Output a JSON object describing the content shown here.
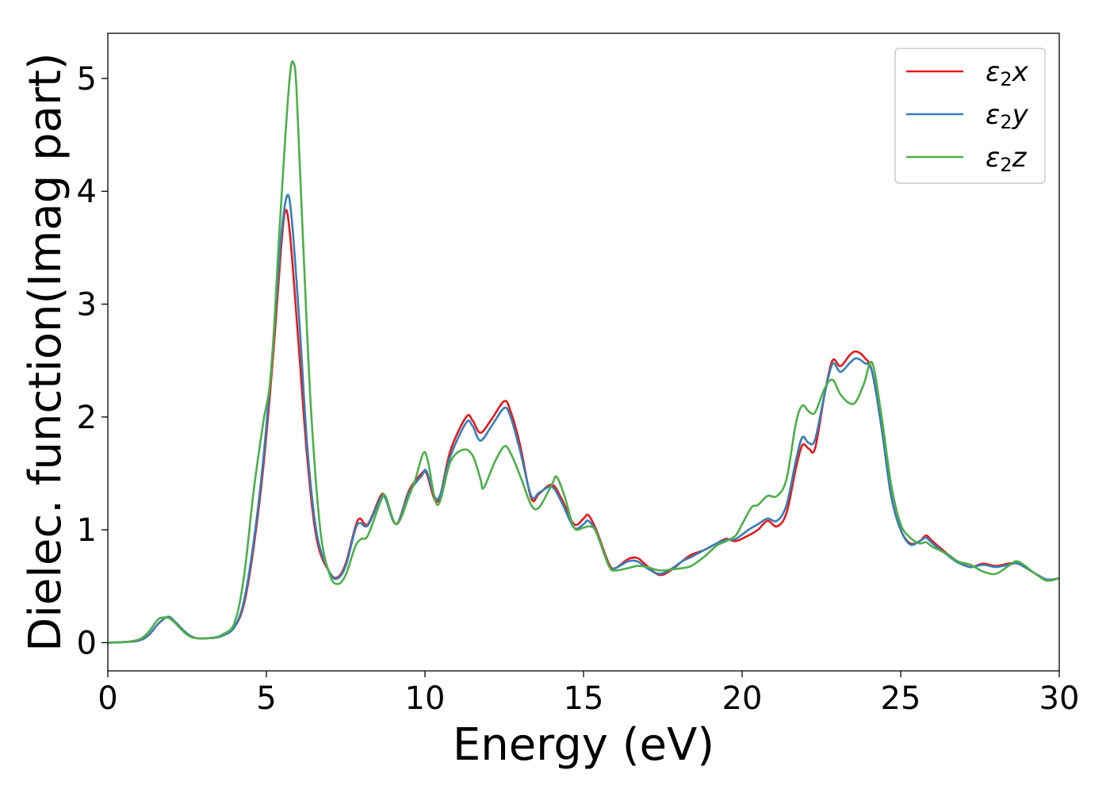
{
  "chart_data": {
    "type": "line",
    "title": "",
    "xlabel": "Energy (eV)",
    "ylabel": "Dielec. function(Imag part)",
    "xlim": [
      0,
      30
    ],
    "ylim": [
      -0.25,
      5.4
    ],
    "xticks": [
      0,
      5,
      10,
      15,
      20,
      25,
      30
    ],
    "yticks": [
      0,
      1,
      2,
      3,
      4,
      5
    ],
    "grid": false,
    "legend_position": "top-right",
    "series": [
      {
        "name": "ε2x",
        "legend_base": "ε",
        "legend_sub": "2",
        "legend_var": "x",
        "color": "#e41a1c",
        "points": [
          [
            0,
            0.0
          ],
          [
            0.5,
            0.005
          ],
          [
            1.0,
            0.02
          ],
          [
            1.3,
            0.07
          ],
          [
            1.6,
            0.17
          ],
          [
            1.9,
            0.23
          ],
          [
            2.1,
            0.19
          ],
          [
            2.5,
            0.08
          ],
          [
            2.8,
            0.04
          ],
          [
            3.2,
            0.04
          ],
          [
            3.6,
            0.06
          ],
          [
            4.0,
            0.14
          ],
          [
            4.3,
            0.35
          ],
          [
            4.6,
            0.85
          ],
          [
            4.9,
            1.55
          ],
          [
            5.2,
            2.5
          ],
          [
            5.45,
            3.45
          ],
          [
            5.6,
            3.83
          ],
          [
            5.75,
            3.6
          ],
          [
            6.0,
            2.7
          ],
          [
            6.3,
            1.6
          ],
          [
            6.6,
            0.9
          ],
          [
            7.0,
            0.62
          ],
          [
            7.25,
            0.58
          ],
          [
            7.5,
            0.7
          ],
          [
            7.8,
            1.02
          ],
          [
            7.95,
            1.1
          ],
          [
            8.2,
            1.05
          ],
          [
            8.6,
            1.3
          ],
          [
            8.75,
            1.28
          ],
          [
            9.1,
            1.05
          ],
          [
            9.5,
            1.35
          ],
          [
            9.9,
            1.5
          ],
          [
            10.05,
            1.5
          ],
          [
            10.4,
            1.25
          ],
          [
            10.8,
            1.7
          ],
          [
            11.3,
            2.0
          ],
          [
            11.5,
            1.97
          ],
          [
            11.75,
            1.86
          ],
          [
            12.1,
            1.98
          ],
          [
            12.5,
            2.14
          ],
          [
            12.7,
            2.05
          ],
          [
            13.0,
            1.75
          ],
          [
            13.35,
            1.28
          ],
          [
            13.6,
            1.32
          ],
          [
            14.0,
            1.4
          ],
          [
            14.3,
            1.28
          ],
          [
            14.7,
            1.05
          ],
          [
            15.0,
            1.1
          ],
          [
            15.15,
            1.13
          ],
          [
            15.4,
            1.0
          ],
          [
            15.8,
            0.7
          ],
          [
            16.0,
            0.66
          ],
          [
            16.4,
            0.74
          ],
          [
            16.7,
            0.75
          ],
          [
            17.0,
            0.68
          ],
          [
            17.4,
            0.6
          ],
          [
            17.8,
            0.65
          ],
          [
            18.1,
            0.72
          ],
          [
            18.4,
            0.78
          ],
          [
            18.8,
            0.82
          ],
          [
            19.2,
            0.88
          ],
          [
            19.5,
            0.92
          ],
          [
            19.8,
            0.9
          ],
          [
            20.2,
            0.95
          ],
          [
            20.5,
            1.0
          ],
          [
            20.8,
            1.08
          ],
          [
            21.1,
            1.03
          ],
          [
            21.4,
            1.15
          ],
          [
            21.7,
            1.55
          ],
          [
            21.9,
            1.75
          ],
          [
            22.1,
            1.72
          ],
          [
            22.3,
            1.72
          ],
          [
            22.6,
            2.2
          ],
          [
            22.85,
            2.5
          ],
          [
            23.1,
            2.45
          ],
          [
            23.4,
            2.55
          ],
          [
            23.6,
            2.58
          ],
          [
            23.85,
            2.53
          ],
          [
            24.1,
            2.4
          ],
          [
            24.4,
            1.9
          ],
          [
            24.7,
            1.3
          ],
          [
            25.0,
            1.0
          ],
          [
            25.3,
            0.88
          ],
          [
            25.6,
            0.9
          ],
          [
            25.8,
            0.95
          ],
          [
            26.0,
            0.9
          ],
          [
            26.5,
            0.78
          ],
          [
            26.8,
            0.72
          ],
          [
            27.2,
            0.67
          ],
          [
            27.6,
            0.7
          ],
          [
            28.0,
            0.68
          ],
          [
            28.4,
            0.7
          ],
          [
            28.7,
            0.7
          ],
          [
            29.2,
            0.62
          ],
          [
            29.6,
            0.56
          ],
          [
            30.0,
            0.57
          ]
        ]
      },
      {
        "name": "ε2y",
        "legend_base": "ε",
        "legend_sub": "2",
        "legend_var": "y",
        "color": "#377eb8",
        "points": [
          [
            0,
            0.0
          ],
          [
            0.5,
            0.005
          ],
          [
            1.0,
            0.02
          ],
          [
            1.3,
            0.07
          ],
          [
            1.6,
            0.17
          ],
          [
            1.9,
            0.23
          ],
          [
            2.1,
            0.19
          ],
          [
            2.5,
            0.08
          ],
          [
            2.8,
            0.04
          ],
          [
            3.2,
            0.04
          ],
          [
            3.6,
            0.06
          ],
          [
            4.0,
            0.14
          ],
          [
            4.3,
            0.38
          ],
          [
            4.6,
            0.9
          ],
          [
            4.9,
            1.62
          ],
          [
            5.2,
            2.6
          ],
          [
            5.45,
            3.55
          ],
          [
            5.65,
            3.96
          ],
          [
            5.8,
            3.75
          ],
          [
            6.05,
            2.8
          ],
          [
            6.3,
            1.7
          ],
          [
            6.6,
            0.95
          ],
          [
            7.0,
            0.62
          ],
          [
            7.25,
            0.57
          ],
          [
            7.5,
            0.68
          ],
          [
            7.8,
            1.0
          ],
          [
            7.95,
            1.06
          ],
          [
            8.2,
            1.04
          ],
          [
            8.6,
            1.28
          ],
          [
            8.75,
            1.28
          ],
          [
            9.1,
            1.05
          ],
          [
            9.5,
            1.33
          ],
          [
            9.9,
            1.48
          ],
          [
            10.05,
            1.52
          ],
          [
            10.4,
            1.27
          ],
          [
            10.8,
            1.65
          ],
          [
            11.3,
            1.95
          ],
          [
            11.5,
            1.92
          ],
          [
            11.75,
            1.79
          ],
          [
            12.1,
            1.92
          ],
          [
            12.5,
            2.08
          ],
          [
            12.7,
            2.0
          ],
          [
            13.0,
            1.7
          ],
          [
            13.35,
            1.3
          ],
          [
            13.6,
            1.33
          ],
          [
            14.0,
            1.38
          ],
          [
            14.3,
            1.25
          ],
          [
            14.7,
            1.02
          ],
          [
            15.0,
            1.05
          ],
          [
            15.15,
            1.08
          ],
          [
            15.4,
            0.98
          ],
          [
            15.8,
            0.68
          ],
          [
            16.0,
            0.66
          ],
          [
            16.4,
            0.72
          ],
          [
            16.7,
            0.72
          ],
          [
            17.0,
            0.66
          ],
          [
            17.4,
            0.61
          ],
          [
            17.8,
            0.66
          ],
          [
            18.1,
            0.72
          ],
          [
            18.4,
            0.76
          ],
          [
            18.8,
            0.82
          ],
          [
            19.2,
            0.88
          ],
          [
            19.5,
            0.91
          ],
          [
            19.8,
            0.92
          ],
          [
            20.2,
            1.0
          ],
          [
            20.5,
            1.05
          ],
          [
            20.8,
            1.1
          ],
          [
            21.1,
            1.08
          ],
          [
            21.4,
            1.22
          ],
          [
            21.7,
            1.62
          ],
          [
            21.9,
            1.82
          ],
          [
            22.1,
            1.77
          ],
          [
            22.3,
            1.8
          ],
          [
            22.6,
            2.2
          ],
          [
            22.85,
            2.47
          ],
          [
            23.1,
            2.4
          ],
          [
            23.4,
            2.48
          ],
          [
            23.6,
            2.52
          ],
          [
            23.85,
            2.48
          ],
          [
            24.1,
            2.4
          ],
          [
            24.4,
            1.9
          ],
          [
            24.7,
            1.3
          ],
          [
            25.0,
            1.0
          ],
          [
            25.3,
            0.87
          ],
          [
            25.6,
            0.9
          ],
          [
            25.8,
            0.93
          ],
          [
            26.0,
            0.88
          ],
          [
            26.5,
            0.77
          ],
          [
            26.8,
            0.71
          ],
          [
            27.2,
            0.67
          ],
          [
            27.6,
            0.69
          ],
          [
            28.0,
            0.67
          ],
          [
            28.4,
            0.69
          ],
          [
            28.7,
            0.7
          ],
          [
            29.2,
            0.62
          ],
          [
            29.6,
            0.56
          ],
          [
            30.0,
            0.57
          ]
        ]
      },
      {
        "name": "ε2z",
        "legend_base": "ε",
        "legend_sub": "2",
        "legend_var": "z",
        "color": "#4daf4a",
        "points": [
          [
            0,
            0.0
          ],
          [
            0.5,
            0.005
          ],
          [
            1.0,
            0.03
          ],
          [
            1.3,
            0.1
          ],
          [
            1.6,
            0.21
          ],
          [
            1.9,
            0.22
          ],
          [
            2.1,
            0.18
          ],
          [
            2.5,
            0.07
          ],
          [
            2.8,
            0.04
          ],
          [
            3.2,
            0.04
          ],
          [
            3.6,
            0.07
          ],
          [
            4.0,
            0.18
          ],
          [
            4.3,
            0.6
          ],
          [
            4.6,
            1.35
          ],
          [
            4.9,
            1.95
          ],
          [
            5.15,
            2.4
          ],
          [
            5.4,
            3.6
          ],
          [
            5.6,
            4.5
          ],
          [
            5.75,
            5.05
          ],
          [
            5.85,
            5.14
          ],
          [
            5.95,
            4.9
          ],
          [
            6.15,
            3.6
          ],
          [
            6.4,
            2.1
          ],
          [
            6.7,
            1.0
          ],
          [
            7.0,
            0.6
          ],
          [
            7.25,
            0.52
          ],
          [
            7.5,
            0.6
          ],
          [
            7.8,
            0.85
          ],
          [
            8.0,
            0.92
          ],
          [
            8.2,
            0.95
          ],
          [
            8.6,
            1.25
          ],
          [
            8.75,
            1.3
          ],
          [
            9.1,
            1.05
          ],
          [
            9.5,
            1.3
          ],
          [
            9.7,
            1.45
          ],
          [
            9.95,
            1.68
          ],
          [
            10.1,
            1.6
          ],
          [
            10.4,
            1.22
          ],
          [
            10.8,
            1.6
          ],
          [
            11.2,
            1.71
          ],
          [
            11.5,
            1.66
          ],
          [
            11.75,
            1.45
          ],
          [
            11.85,
            1.37
          ],
          [
            12.2,
            1.6
          ],
          [
            12.5,
            1.74
          ],
          [
            12.7,
            1.68
          ],
          [
            13.0,
            1.48
          ],
          [
            13.35,
            1.22
          ],
          [
            13.6,
            1.2
          ],
          [
            14.0,
            1.4
          ],
          [
            14.15,
            1.47
          ],
          [
            14.4,
            1.3
          ],
          [
            14.7,
            1.02
          ],
          [
            15.0,
            1.02
          ],
          [
            15.2,
            1.03
          ],
          [
            15.4,
            0.98
          ],
          [
            15.8,
            0.68
          ],
          [
            16.0,
            0.64
          ],
          [
            16.4,
            0.66
          ],
          [
            16.7,
            0.68
          ],
          [
            17.0,
            0.67
          ],
          [
            17.4,
            0.64
          ],
          [
            17.8,
            0.65
          ],
          [
            18.1,
            0.66
          ],
          [
            18.4,
            0.68
          ],
          [
            18.8,
            0.76
          ],
          [
            19.2,
            0.86
          ],
          [
            19.5,
            0.9
          ],
          [
            19.8,
            0.95
          ],
          [
            20.0,
            1.05
          ],
          [
            20.3,
            1.2
          ],
          [
            20.5,
            1.22
          ],
          [
            20.8,
            1.3
          ],
          [
            21.1,
            1.3
          ],
          [
            21.4,
            1.45
          ],
          [
            21.7,
            1.95
          ],
          [
            21.9,
            2.1
          ],
          [
            22.1,
            2.05
          ],
          [
            22.3,
            2.04
          ],
          [
            22.6,
            2.25
          ],
          [
            22.85,
            2.33
          ],
          [
            23.1,
            2.2
          ],
          [
            23.4,
            2.12
          ],
          [
            23.6,
            2.14
          ],
          [
            23.85,
            2.3
          ],
          [
            24.1,
            2.48
          ],
          [
            24.4,
            2.0
          ],
          [
            24.7,
            1.4
          ],
          [
            25.0,
            1.05
          ],
          [
            25.3,
            0.93
          ],
          [
            25.6,
            0.88
          ],
          [
            25.8,
            0.89
          ],
          [
            26.0,
            0.85
          ],
          [
            26.5,
            0.78
          ],
          [
            26.8,
            0.72
          ],
          [
            27.2,
            0.69
          ],
          [
            27.6,
            0.63
          ],
          [
            28.0,
            0.61
          ],
          [
            28.4,
            0.68
          ],
          [
            28.7,
            0.72
          ],
          [
            29.2,
            0.62
          ],
          [
            29.6,
            0.55
          ],
          [
            30.0,
            0.57
          ]
        ]
      }
    ]
  }
}
